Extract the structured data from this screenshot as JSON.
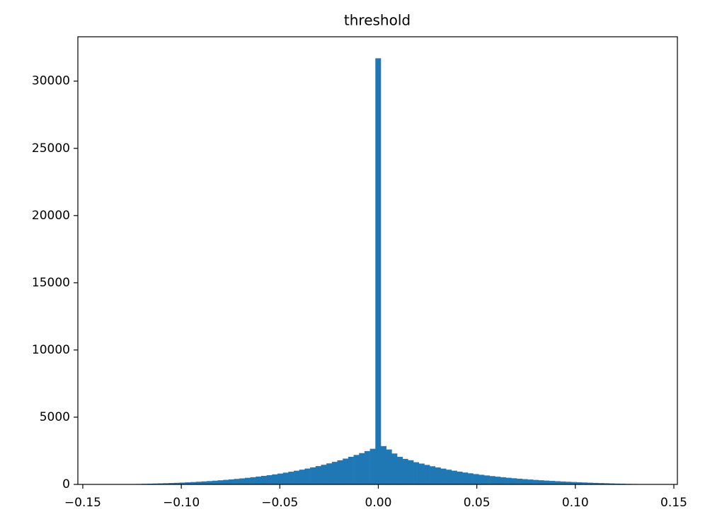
{
  "chart_data": {
    "type": "histogram",
    "title": "threshold",
    "color": "#1f77b4",
    "bins": [
      -0.13674,
      -0.13398,
      -0.13122,
      -0.12846,
      -0.1257,
      -0.12294,
      -0.12018,
      -0.11742,
      -0.11466,
      -0.1119,
      -0.10914,
      -0.10638,
      -0.10362,
      -0.10086,
      -0.0981,
      -0.09534,
      -0.09258,
      -0.08982,
      -0.08706,
      -0.0843,
      -0.08154,
      -0.07878,
      -0.07602,
      -0.07326,
      -0.0705,
      -0.06774,
      -0.06498,
      -0.06222,
      -0.05946,
      -0.0567,
      -0.05394,
      -0.05118,
      -0.04842,
      -0.04566,
      -0.0429,
      -0.04014,
      -0.03738,
      -0.03462,
      -0.03186,
      -0.0291,
      -0.02634,
      -0.02358,
      -0.02082,
      -0.01806,
      -0.0153,
      -0.01254,
      -0.00978,
      -0.00702,
      -0.00426,
      -0.0015,
      0.00126,
      0.00402,
      0.00678,
      0.00954,
      0.0123,
      0.01506,
      0.01782,
      0.02058,
      0.02334,
      0.0261,
      0.02886,
      0.03162,
      0.03438,
      0.03714,
      0.0399,
      0.04266,
      0.04542,
      0.04818,
      0.05094,
      0.0537,
      0.05646,
      0.05922,
      0.06198,
      0.06474,
      0.0675,
      0.07026,
      0.07302,
      0.07578,
      0.07854,
      0.0813,
      0.08406,
      0.08682,
      0.08958,
      0.09234,
      0.0951,
      0.09786,
      0.10062,
      0.10338,
      0.10614,
      0.1089,
      0.11166,
      0.11442,
      0.11718,
      0.11994,
      0.1227,
      0.12546,
      0.12822,
      0.13098,
      0.13374,
      0.1365,
      0.13926
    ],
    "counts": [
      5,
      8,
      12,
      18,
      25,
      33,
      42,
      52,
      63,
      75,
      88,
      102,
      118,
      135,
      154,
      175,
      198,
      222,
      248,
      276,
      306,
      338,
      372,
      409,
      448,
      490,
      535,
      583,
      634,
      688,
      746,
      808,
      874,
      944,
      1018,
      1097,
      1180,
      1268,
      1362,
      1460,
      1565,
      1677,
      1795,
      1920,
      2052,
      2190,
      2330,
      2480,
      2650,
      31700,
      2850,
      2600,
      2300,
      2050,
      1900,
      1800,
      1650,
      1550,
      1450,
      1350,
      1260,
      1175,
      1095,
      1020,
      950,
      885,
      825,
      768,
      715,
      665,
      618,
      574,
      533,
      494,
      458,
      424,
      392,
      362,
      334,
      308,
      283,
      260,
      238,
      217,
      197,
      178,
      160,
      143,
      127,
      112,
      98,
      85,
      72,
      60,
      49,
      39,
      30,
      22,
      15,
      8
    ],
    "xlim": [
      -0.1525,
      0.1518
    ],
    "xticks": [
      {
        "value": -0.15,
        "label": "−0.15"
      },
      {
        "value": -0.1,
        "label": "−0.10"
      },
      {
        "value": -0.05,
        "label": "−0.05"
      },
      {
        "value": 0,
        "label": "0.00"
      },
      {
        "value": 0.05,
        "label": "0.05"
      },
      {
        "value": 0.1,
        "label": "0.10"
      },
      {
        "value": 0.15,
        "label": "0.15"
      }
    ],
    "ylim": [
      0,
      33300
    ],
    "yticks": [
      0,
      5000,
      10000,
      15000,
      20000,
      25000,
      30000
    ]
  }
}
